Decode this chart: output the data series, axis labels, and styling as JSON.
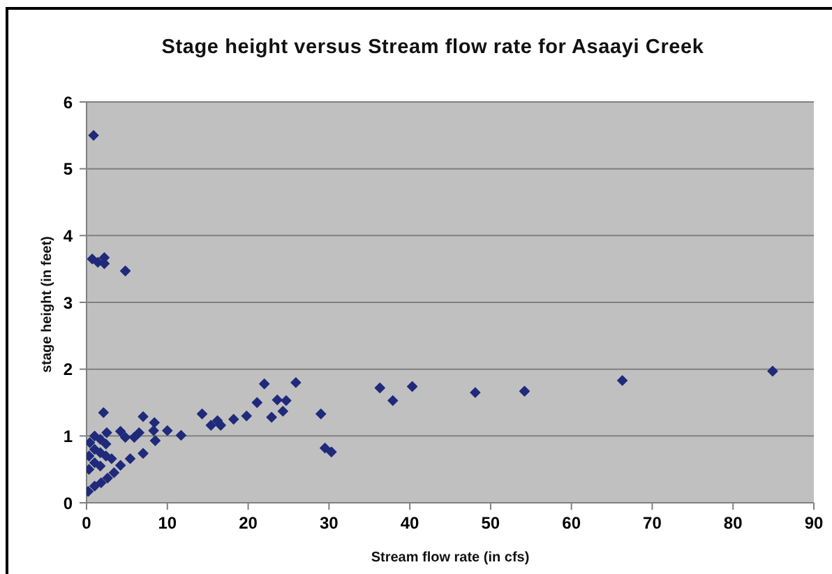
{
  "chart_data": {
    "type": "scatter",
    "title": "Stage height versus Stream flow rate for Asaayi Creek",
    "xlabel": "Stream flow rate (in cfs)",
    "ylabel": "stage height (in feet)",
    "series": [
      {
        "color": "#1f2a7a",
        "x": [
          0.87,
          0.7,
          1.4,
          2.2,
          2.2,
          4.8,
          0.2,
          1.0,
          1.8,
          2.6,
          3.4,
          4.2,
          0.3,
          0.3,
          0.4,
          1.0,
          1.0,
          1.0,
          1.7,
          1.7,
          1.7,
          2.4,
          2.4,
          2.5,
          3.1,
          2.1,
          7.0,
          8.4,
          4.2,
          4.8,
          5.9,
          6.5,
          8.3,
          8.5,
          10.0,
          11.7,
          5.4,
          7.0,
          14.3,
          15.4,
          16.2,
          16.6,
          18.2,
          19.8,
          21.1,
          22.0,
          22.9,
          23.6,
          24.7,
          24.3,
          25.9,
          29.0,
          29.5,
          30.3,
          36.3,
          37.9,
          40.3,
          48.1,
          54.2,
          66.3,
          84.9
        ],
        "values": [
          5.5,
          3.65,
          3.6,
          3.67,
          3.58,
          3.47,
          0.17,
          0.25,
          0.3,
          0.37,
          0.45,
          0.56,
          0.5,
          0.7,
          0.9,
          0.6,
          0.8,
          1.0,
          0.55,
          0.75,
          0.95,
          0.7,
          0.88,
          1.05,
          0.66,
          1.35,
          1.29,
          1.2,
          1.07,
          0.98,
          0.98,
          1.05,
          1.08,
          0.93,
          1.08,
          1.01,
          0.66,
          0.74,
          1.33,
          1.16,
          1.23,
          1.16,
          1.25,
          1.3,
          1.5,
          1.78,
          1.28,
          1.54,
          1.53,
          1.37,
          1.8,
          1.33,
          0.82,
          0.76,
          1.72,
          1.53,
          1.74,
          1.65,
          1.67,
          1.83,
          1.97
        ]
      }
    ],
    "xlim": [
      0,
      90
    ],
    "xticks": [
      0,
      10,
      20,
      30,
      40,
      50,
      60,
      70,
      80,
      90
    ],
    "ylim": [
      0,
      6
    ],
    "yticks": [
      0,
      1,
      2,
      3,
      4,
      5,
      6
    ],
    "grid": "y",
    "marker": "diamond"
  }
}
